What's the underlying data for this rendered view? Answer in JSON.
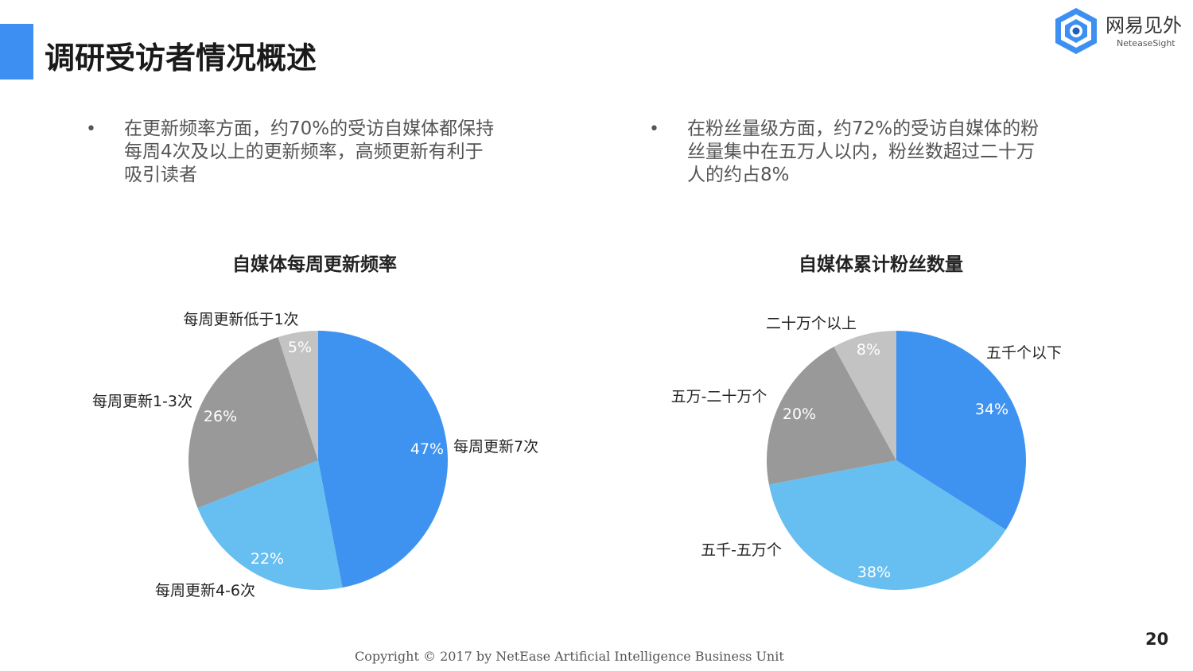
{
  "header": {
    "title": "调研受访者情况概述",
    "logo_name": "网易见外",
    "logo_sub": "NeteaseSight",
    "accent_color": "#3d8ff2"
  },
  "bullets": [
    {
      "lines": [
        "在更新频率方面，约70%的受访自媒体都保持",
        "每周4次及以上的更新频率，高频更新有利于",
        "吸引读者"
      ]
    },
    {
      "lines": [
        "在粉丝量级方面，约72%的受访自媒体的粉",
        "丝量集中在五万人以内，粉丝数超过二十万",
        "人的约占8%"
      ]
    }
  ],
  "bullet_symbol": "•",
  "chart_data": [
    {
      "type": "pie",
      "title": "自媒体每周更新频率",
      "slices": [
        {
          "label": "每周更新7次",
          "value": 47,
          "value_label": "47%",
          "color": "#3f93f0"
        },
        {
          "label": "每周更新4-6次",
          "value": 22,
          "value_label": "22%",
          "color": "#67bef0"
        },
        {
          "label": "每周更新1-3次",
          "value": 26,
          "value_label": "26%",
          "color": "#999999"
        },
        {
          "label": "每周更新低于1次",
          "value": 5,
          "value_label": "5%",
          "color": "#c3c3c3"
        }
      ]
    },
    {
      "type": "pie",
      "title": "自媒体累计粉丝数量",
      "slices": [
        {
          "label": "五千个以下",
          "value": 34,
          "value_label": "34%",
          "color": "#3f93f0"
        },
        {
          "label": "五千-五万个",
          "value": 38,
          "value_label": "38%",
          "color": "#67bef0"
        },
        {
          "label": "五万-二十万个",
          "value": 20,
          "value_label": "20%",
          "color": "#999999"
        },
        {
          "label": "二十万个以上",
          "value": 8,
          "value_label": "8%",
          "color": "#c3c3c3"
        }
      ]
    }
  ],
  "footer": {
    "copyright": "Copyright © 2017 by NetEase Artificial Intelligence Business Unit",
    "page_number": "20"
  }
}
